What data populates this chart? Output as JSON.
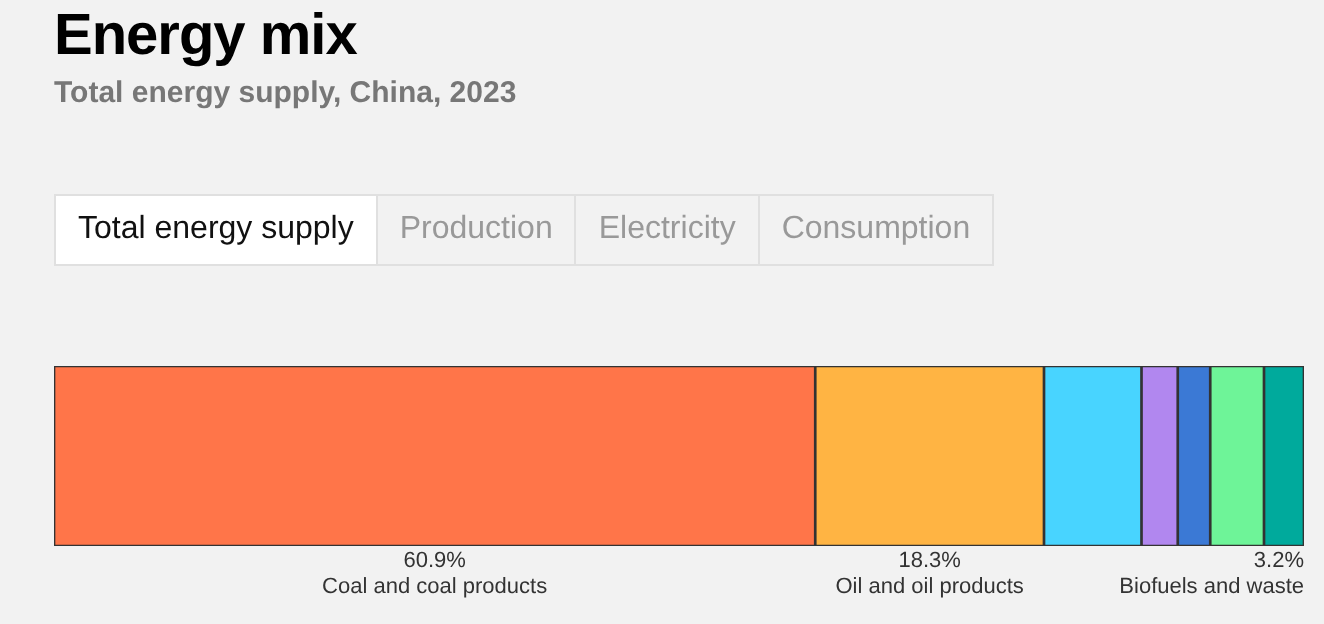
{
  "chart_data": {
    "type": "bar",
    "title": "Energy mix",
    "subtitle": "Total energy supply, China, 2023",
    "annotations": [
      "Total energy supply",
      "Production",
      "Electricity",
      "Consumption"
    ],
    "orientation": "horizontal",
    "stacked": true,
    "categories": [
      null
    ],
    "series": [
      {
        "name": "Coal and coal products",
        "color": "#ff7549",
        "values": [
          60.9
        ],
        "value_labels": [
          "60.9%"
        ]
      },
      {
        "name": "Oil and oil products",
        "color": "#ffb443",
        "values": [
          18.3
        ],
        "value_labels": [
          "18.3%"
        ]
      },
      {
        "color": "#48d4ff",
        "values": [
          7.8
        ]
      },
      {
        "color": "#b187ef",
        "values": [
          2.9
        ]
      },
      {
        "color": "#3b79d5",
        "values": [
          2.6
        ]
      },
      {
        "color": "#6ef498",
        "values": [
          4.3
        ]
      },
      {
        "name": "Biofuels and waste",
        "color": "#00aa9c",
        "values": [
          3.2
        ],
        "value_labels": [
          "3.2%"
        ]
      }
    ]
  }
}
